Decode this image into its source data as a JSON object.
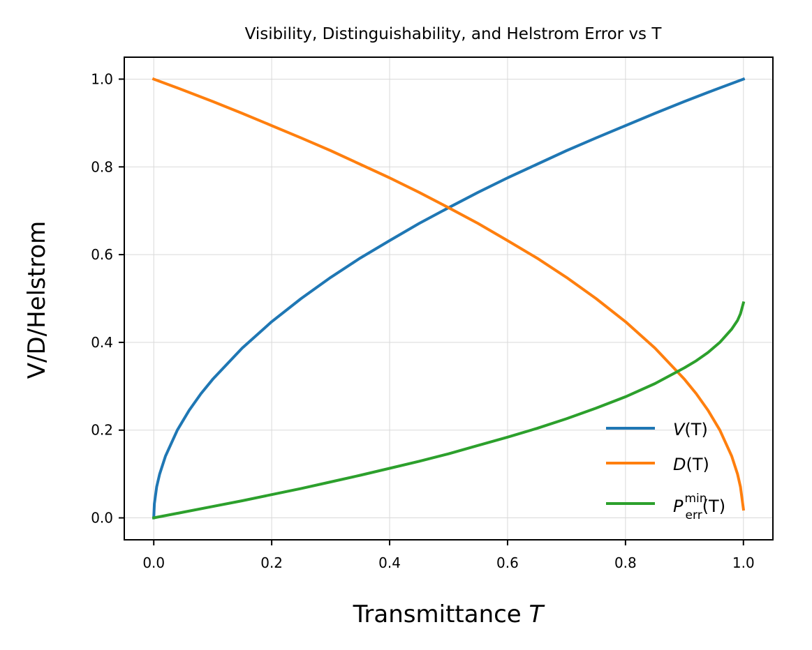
{
  "chart_data": {
    "type": "line",
    "title": "Visibility, Distinguishability, and Helstrom Error vs T",
    "xlabel_main": "Transmittance ",
    "xlabel_var": "T",
    "ylabel": "V/D/Helstrom",
    "xlim": [
      -0.05,
      1.05
    ],
    "ylim": [
      -0.05,
      1.05
    ],
    "grid": true,
    "legend_position": "lower-right",
    "xticks": [
      0.0,
      0.2,
      0.4,
      0.6,
      0.8,
      1.0
    ],
    "xtick_labels": [
      "0.0",
      "0.2",
      "0.4",
      "0.6",
      "0.8",
      "1.0"
    ],
    "yticks": [
      0.0,
      0.2,
      0.4,
      0.6,
      0.8,
      1.0
    ],
    "ytick_labels": [
      "0.0",
      "0.2",
      "0.4",
      "0.6",
      "0.8",
      "1.0"
    ],
    "series": [
      {
        "name": "V(T)",
        "legend_main": "V",
        "legend_arg": "(T)",
        "color": "#1f77b4",
        "x": [
          0.0,
          0.001,
          0.005,
          0.01,
          0.02,
          0.04,
          0.06,
          0.08,
          0.1,
          0.15,
          0.2,
          0.25,
          0.3,
          0.35,
          0.4,
          0.45,
          0.5,
          0.55,
          0.6,
          0.65,
          0.7,
          0.75,
          0.8,
          0.85,
          0.9,
          0.95,
          1.0
        ],
        "y": [
          0.0,
          0.032,
          0.071,
          0.1,
          0.141,
          0.2,
          0.245,
          0.283,
          0.316,
          0.387,
          0.447,
          0.5,
          0.548,
          0.592,
          0.632,
          0.671,
          0.707,
          0.742,
          0.775,
          0.806,
          0.837,
          0.866,
          0.894,
          0.922,
          0.949,
          0.975,
          1.0
        ]
      },
      {
        "name": "D(T)",
        "legend_main": "D",
        "legend_arg": "(T)",
        "color": "#ff7f0e",
        "x": [
          0.0,
          0.05,
          0.1,
          0.15,
          0.2,
          0.25,
          0.3,
          0.35,
          0.4,
          0.45,
          0.5,
          0.55,
          0.6,
          0.65,
          0.7,
          0.75,
          0.8,
          0.85,
          0.9,
          0.92,
          0.94,
          0.96,
          0.98,
          0.99,
          0.995,
          1.0
        ],
        "y": [
          1.0,
          0.975,
          0.949,
          0.922,
          0.894,
          0.866,
          0.837,
          0.806,
          0.775,
          0.742,
          0.707,
          0.671,
          0.632,
          0.592,
          0.548,
          0.5,
          0.447,
          0.387,
          0.316,
          0.283,
          0.245,
          0.2,
          0.141,
          0.1,
          0.071,
          0.02
        ]
      },
      {
        "name": "P_err^min(T)",
        "legend_main": "P",
        "legend_sup": "min",
        "legend_sub": "err",
        "legend_arg": "(T)",
        "color": "#2ca02c",
        "x": [
          0.0,
          0.05,
          0.1,
          0.15,
          0.2,
          0.25,
          0.3,
          0.35,
          0.4,
          0.45,
          0.5,
          0.55,
          0.6,
          0.65,
          0.7,
          0.75,
          0.8,
          0.85,
          0.9,
          0.92,
          0.94,
          0.96,
          0.98,
          0.99,
          0.995,
          1.0
        ],
        "y": [
          0.0,
          0.013,
          0.026,
          0.039,
          0.053,
          0.067,
          0.082,
          0.097,
          0.113,
          0.129,
          0.146,
          0.165,
          0.184,
          0.204,
          0.226,
          0.25,
          0.276,
          0.306,
          0.342,
          0.358,
          0.377,
          0.4,
          0.43,
          0.45,
          0.465,
          0.49
        ]
      }
    ]
  }
}
